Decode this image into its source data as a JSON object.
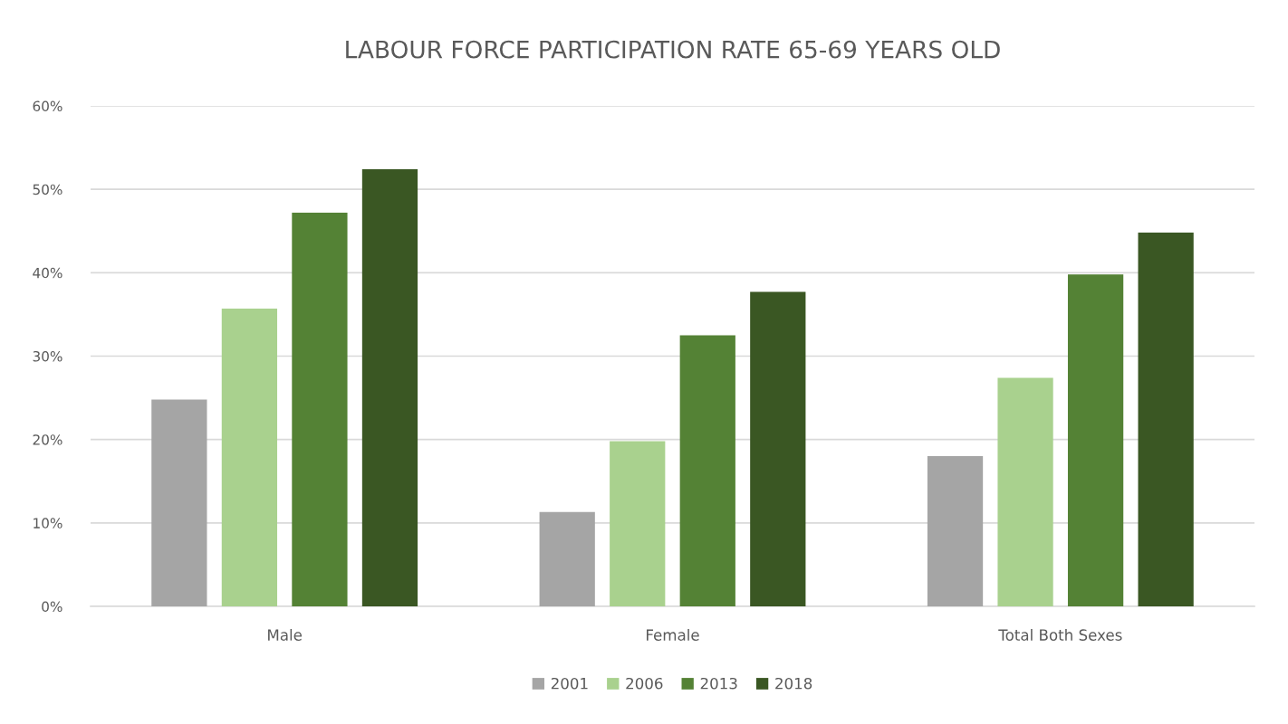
{
  "chart_data": {
    "type": "bar",
    "title": "LABOUR FORCE PARTICIPATION RATE 65-69 YEARS OLD",
    "categories": [
      "Male",
      "Female",
      "Total Both Sexes"
    ],
    "series": [
      {
        "name": "2001",
        "color": "#a5a5a5",
        "values": [
          24.8,
          11.3,
          18.0
        ]
      },
      {
        "name": "2006",
        "color": "#a9d18e",
        "values": [
          35.7,
          19.8,
          27.4
        ]
      },
      {
        "name": "2013",
        "color": "#548235",
        "values": [
          47.2,
          32.5,
          39.8
        ]
      },
      {
        "name": "2018",
        "color": "#3a5723",
        "values": [
          52.4,
          37.7,
          44.8
        ]
      }
    ],
    "ylim": [
      0,
      60
    ],
    "yticks": [
      {
        "value": 0,
        "label": "0%"
      },
      {
        "value": 10,
        "label": "10%"
      },
      {
        "value": 20,
        "label": "20%"
      },
      {
        "value": 30,
        "label": "30%"
      },
      {
        "value": 40,
        "label": "40%"
      },
      {
        "value": 50,
        "label": "50%"
      },
      {
        "value": 60,
        "label": "60%"
      }
    ],
    "grid": "y",
    "legend": "bottom"
  }
}
